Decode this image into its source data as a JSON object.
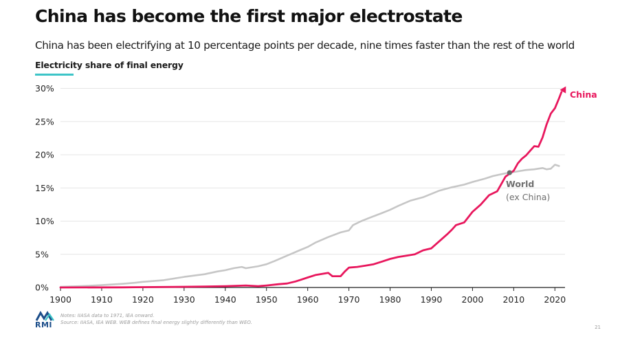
{
  "header": {
    "title": "China has become the first major electrostate",
    "subtitle": "China has been electrifying at 10 percentage points per decade, nine times faster than the rest of the world",
    "chart_label": "Electricity share of final energy"
  },
  "footer": {
    "logo_text": "RMI",
    "notes": "Notes: IIASA data to 1971, IEA onward.",
    "source": "Source: IIASA, IEA WEB. WEB defines final energy slightly differently than WEO.",
    "page_number": "21"
  },
  "colors": {
    "china": "#e8175d",
    "world": "#c6c6c6",
    "world_label": "#6e6e6e",
    "accent_underline": "#3cc4c7",
    "grid": "#e6e6e6",
    "logo_blue": "#1c4e8a",
    "logo_teal": "#3cc4c7"
  },
  "chart_data": {
    "type": "line",
    "title": "Electricity share of final energy",
    "xlabel": "",
    "ylabel": "",
    "xlim": [
      1900,
      2022
    ],
    "ylim": [
      0,
      30
    ],
    "grid": true,
    "x_ticks": [
      "1900",
      "1910",
      "1920",
      "1930",
      "1940",
      "1950",
      "1960",
      "1970",
      "1980",
      "1990",
      "2000",
      "2010",
      "2020"
    ],
    "y_ticks": [
      "0%",
      "5%",
      "10%",
      "15%",
      "20%",
      "25%",
      "30%"
    ],
    "series": [
      {
        "name": "World",
        "note": "(ex China)",
        "points": [
          [
            1900,
            0.1
          ],
          [
            1905,
            0.2
          ],
          [
            1910,
            0.35
          ],
          [
            1915,
            0.55
          ],
          [
            1918,
            0.7
          ],
          [
            1920,
            0.85
          ],
          [
            1925,
            1.1
          ],
          [
            1930,
            1.6
          ],
          [
            1935,
            2.0
          ],
          [
            1938,
            2.4
          ],
          [
            1940,
            2.6
          ],
          [
            1942,
            2.9
          ],
          [
            1944,
            3.1
          ],
          [
            1945,
            2.9
          ],
          [
            1948,
            3.2
          ],
          [
            1950,
            3.5
          ],
          [
            1952,
            4.0
          ],
          [
            1955,
            4.8
          ],
          [
            1958,
            5.6
          ],
          [
            1960,
            6.1
          ],
          [
            1962,
            6.8
          ],
          [
            1965,
            7.6
          ],
          [
            1968,
            8.3
          ],
          [
            1970,
            8.6
          ],
          [
            1971,
            9.4
          ],
          [
            1973,
            10.0
          ],
          [
            1975,
            10.5
          ],
          [
            1978,
            11.2
          ],
          [
            1980,
            11.7
          ],
          [
            1982,
            12.3
          ],
          [
            1985,
            13.1
          ],
          [
            1988,
            13.6
          ],
          [
            1990,
            14.1
          ],
          [
            1992,
            14.6
          ],
          [
            1995,
            15.1
          ],
          [
            1998,
            15.5
          ],
          [
            2000,
            15.9
          ],
          [
            2003,
            16.4
          ],
          [
            2005,
            16.8
          ],
          [
            2008,
            17.2
          ],
          [
            2010,
            17.4
          ],
          [
            2013,
            17.7
          ],
          [
            2015,
            17.8
          ],
          [
            2017,
            18.0
          ],
          [
            2018,
            17.8
          ],
          [
            2019,
            17.9
          ],
          [
            2020,
            18.5
          ],
          [
            2021,
            18.3
          ]
        ]
      },
      {
        "name": "China",
        "points": [
          [
            1900,
            0.0
          ],
          [
            1915,
            0.02
          ],
          [
            1920,
            0.05
          ],
          [
            1930,
            0.1
          ],
          [
            1935,
            0.15
          ],
          [
            1940,
            0.2
          ],
          [
            1945,
            0.3
          ],
          [
            1948,
            0.2
          ],
          [
            1950,
            0.3
          ],
          [
            1953,
            0.5
          ],
          [
            1955,
            0.6
          ],
          [
            1957,
            0.9
          ],
          [
            1958,
            1.1
          ],
          [
            1960,
            1.5
          ],
          [
            1962,
            1.9
          ],
          [
            1964,
            2.1
          ],
          [
            1965,
            2.2
          ],
          [
            1966,
            1.7
          ],
          [
            1968,
            1.7
          ],
          [
            1969,
            2.4
          ],
          [
            1970,
            3.0
          ],
          [
            1972,
            3.1
          ],
          [
            1974,
            3.3
          ],
          [
            1976,
            3.5
          ],
          [
            1978,
            3.9
          ],
          [
            1980,
            4.3
          ],
          [
            1982,
            4.6
          ],
          [
            1984,
            4.8
          ],
          [
            1986,
            5.0
          ],
          [
            1988,
            5.6
          ],
          [
            1990,
            5.9
          ],
          [
            1992,
            7.0
          ],
          [
            1994,
            8.1
          ],
          [
            1995,
            8.7
          ],
          [
            1996,
            9.4
          ],
          [
            1998,
            9.8
          ],
          [
            2000,
            11.4
          ],
          [
            2002,
            12.5
          ],
          [
            2004,
            13.9
          ],
          [
            2006,
            14.5
          ],
          [
            2008,
            16.7
          ],
          [
            2010,
            17.6
          ],
          [
            2011,
            18.7
          ],
          [
            2012,
            19.4
          ],
          [
            2013,
            19.9
          ],
          [
            2014,
            20.6
          ],
          [
            2015,
            21.3
          ],
          [
            2016,
            21.2
          ],
          [
            2017,
            22.6
          ],
          [
            2018,
            24.6
          ],
          [
            2019,
            26.2
          ],
          [
            2020,
            27.0
          ],
          [
            2021,
            28.5
          ],
          [
            2022,
            29.9
          ]
        ]
      }
    ],
    "annotations": [
      {
        "label": "World",
        "sublabel": "(ex China)",
        "marker_x": 2009,
        "marker_y": 17.3
      },
      {
        "label": "China"
      }
    ]
  }
}
